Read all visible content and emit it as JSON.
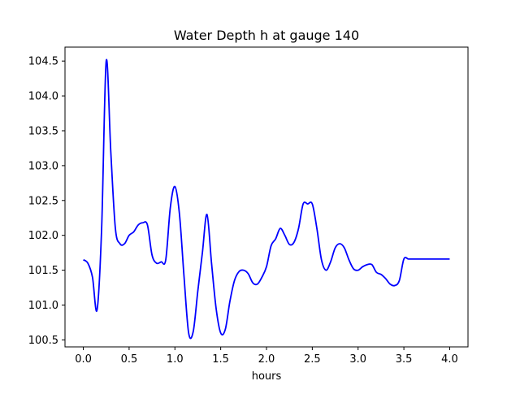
{
  "chart_data": {
    "type": "line",
    "title": "Water Depth h at gauge 140",
    "xlabel": "hours",
    "ylabel": "",
    "xlim": [
      -0.2,
      4.2
    ],
    "ylim": [
      100.4,
      104.7
    ],
    "xticks": [
      0.0,
      0.5,
      1.0,
      1.5,
      2.0,
      2.5,
      3.0,
      3.5,
      4.0
    ],
    "xtick_labels": [
      "0.0",
      "0.5",
      "1.0",
      "1.5",
      "2.0",
      "2.5",
      "3.0",
      "3.5",
      "4.0"
    ],
    "yticks": [
      100.5,
      101.0,
      101.5,
      102.0,
      102.5,
      103.0,
      103.5,
      104.0,
      104.5
    ],
    "ytick_labels": [
      "100.5",
      "101.0",
      "101.5",
      "102.0",
      "102.5",
      "103.0",
      "103.5",
      "104.0",
      "104.5"
    ],
    "grid": false,
    "legend": "none",
    "series": [
      {
        "color": "#0000ff",
        "x": [
          0.0,
          0.05,
          0.1,
          0.15,
          0.2,
          0.25,
          0.3,
          0.35,
          0.4,
          0.45,
          0.5,
          0.55,
          0.6,
          0.65,
          0.7,
          0.75,
          0.8,
          0.85,
          0.9,
          0.95,
          1.0,
          1.05,
          1.1,
          1.15,
          1.2,
          1.25,
          1.3,
          1.35,
          1.4,
          1.45,
          1.5,
          1.55,
          1.6,
          1.65,
          1.7,
          1.75,
          1.8,
          1.85,
          1.9,
          1.95,
          2.0,
          2.05,
          2.1,
          2.15,
          2.2,
          2.25,
          2.3,
          2.35,
          2.4,
          2.45,
          2.5,
          2.55,
          2.6,
          2.65,
          2.7,
          2.75,
          2.8,
          2.85,
          2.9,
          2.95,
          3.0,
          3.05,
          3.1,
          3.15,
          3.2,
          3.25,
          3.3,
          3.35,
          3.4,
          3.45,
          3.5,
          3.55,
          3.6,
          3.65,
          3.7,
          3.75,
          3.8,
          3.85,
          3.9,
          3.95,
          4.0
        ],
        "y": [
          101.65,
          101.6,
          101.4,
          100.93,
          102.1,
          104.5,
          103.2,
          102.1,
          101.88,
          101.88,
          102.0,
          102.05,
          102.15,
          102.18,
          102.15,
          101.72,
          101.6,
          101.62,
          101.65,
          102.4,
          102.7,
          102.3,
          101.4,
          100.6,
          100.62,
          101.2,
          101.75,
          102.3,
          101.6,
          100.95,
          100.6,
          100.65,
          101.05,
          101.35,
          101.48,
          101.5,
          101.45,
          101.32,
          101.3,
          101.4,
          101.55,
          101.85,
          101.95,
          102.1,
          102.0,
          101.87,
          101.9,
          102.1,
          102.45,
          102.45,
          102.45,
          102.1,
          101.65,
          101.5,
          101.62,
          101.82,
          101.88,
          101.82,
          101.65,
          101.52,
          101.5,
          101.55,
          101.58,
          101.58,
          101.47,
          101.44,
          101.38,
          101.3,
          101.28,
          101.35,
          101.66,
          101.66,
          101.66,
          101.66,
          101.66,
          101.66,
          101.66,
          101.66,
          101.66,
          101.66,
          101.66
        ]
      }
    ]
  }
}
